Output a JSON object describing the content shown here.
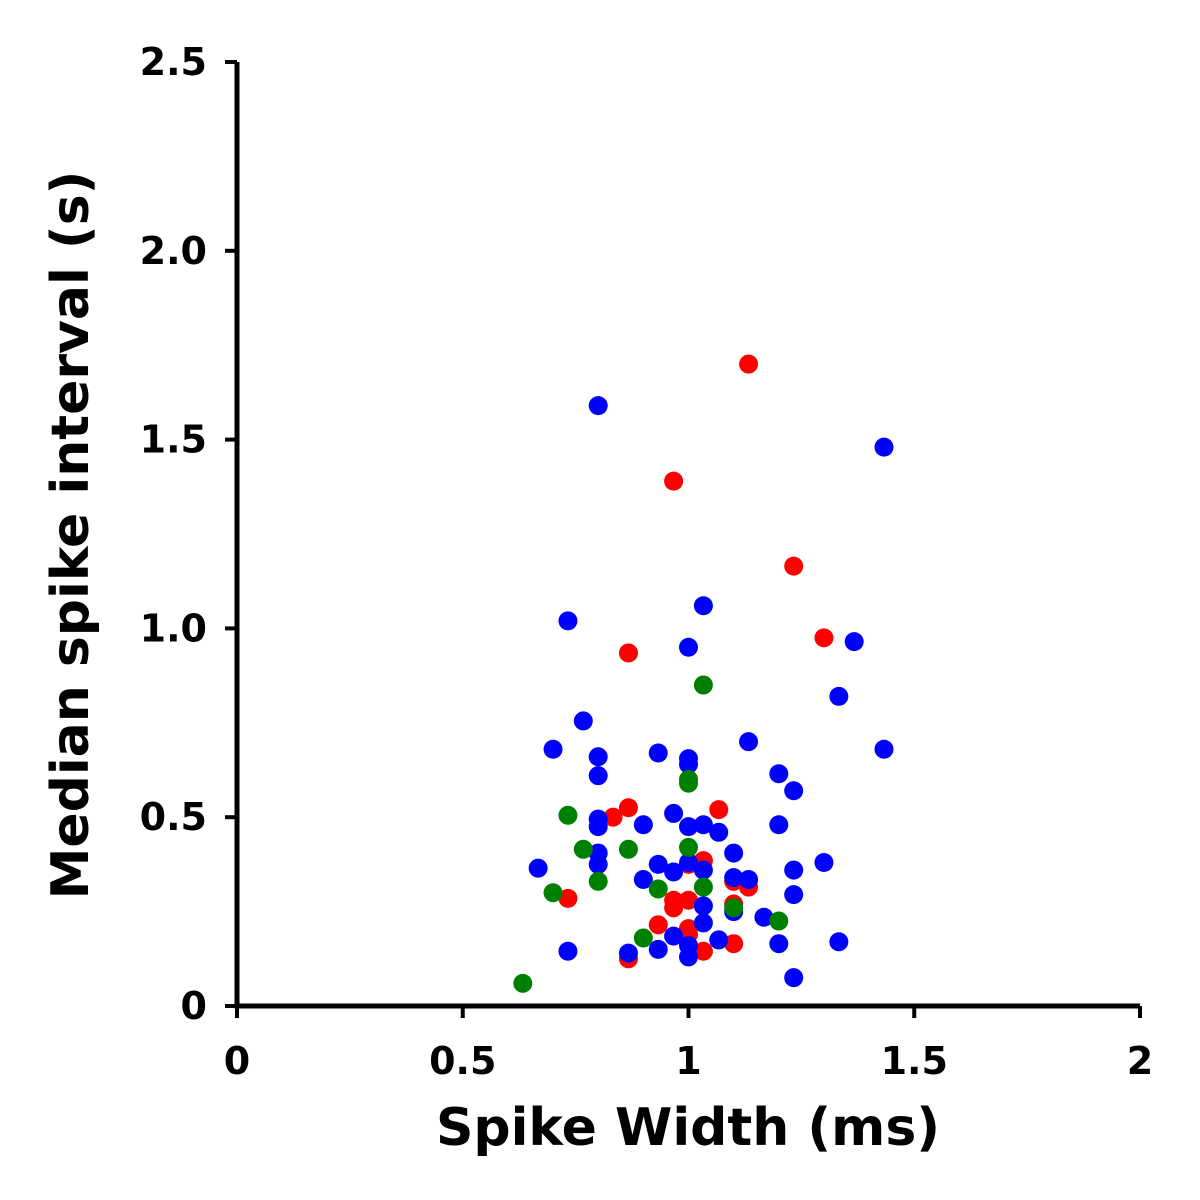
{
  "chart_data": {
    "type": "scatter",
    "title": "",
    "xlabel": "Spike Width (ms)",
    "ylabel": "Median spike interval (s)",
    "xlim": [
      0,
      2
    ],
    "ylim": [
      0,
      2.5
    ],
    "x_ticks": [
      0,
      0.5,
      1,
      1.5,
      2
    ],
    "x_tick_labels": [
      "0",
      "0.5",
      "1",
      "1.5",
      "2"
    ],
    "y_ticks": [
      0,
      0.5,
      1.0,
      1.5,
      2.0,
      2.5
    ],
    "y_tick_labels": [
      "0",
      "0.5",
      "1.0",
      "1.5",
      "2.0",
      "2.5"
    ],
    "grid": false,
    "legend": "none",
    "series": [
      {
        "color": "#ff0000",
        "points": [
          [
            1.133,
            1.7
          ],
          [
            0.967,
            1.39
          ],
          [
            1.233,
            1.165
          ],
          [
            1.3,
            0.975
          ],
          [
            0.867,
            0.935
          ],
          [
            0.867,
            0.525
          ],
          [
            0.833,
            0.5
          ],
          [
            1.067,
            0.52
          ],
          [
            1.033,
            0.385
          ],
          [
            1.0,
            0.375
          ],
          [
            0.733,
            0.285
          ],
          [
            0.967,
            0.28
          ],
          [
            1.0,
            0.28
          ],
          [
            0.967,
            0.26
          ],
          [
            1.1,
            0.33
          ],
          [
            1.133,
            0.315
          ],
          [
            0.933,
            0.215
          ],
          [
            1.0,
            0.205
          ],
          [
            1.0,
            0.19
          ],
          [
            1.1,
            0.165
          ],
          [
            1.033,
            0.145
          ],
          [
            0.867,
            0.125
          ],
          [
            1.1,
            0.27
          ]
        ]
      },
      {
        "color": "#0000ff",
        "points": [
          [
            0.8,
            1.59
          ],
          [
            1.433,
            1.48
          ],
          [
            1.033,
            1.06
          ],
          [
            0.733,
            1.02
          ],
          [
            1.367,
            0.965
          ],
          [
            1.0,
            0.95
          ],
          [
            1.333,
            0.82
          ],
          [
            0.767,
            0.755
          ],
          [
            0.7,
            0.68
          ],
          [
            1.133,
            0.7
          ],
          [
            1.433,
            0.68
          ],
          [
            0.8,
            0.66
          ],
          [
            0.933,
            0.67
          ],
          [
            1.0,
            0.655
          ],
          [
            1.0,
            0.64
          ],
          [
            0.8,
            0.61
          ],
          [
            1.2,
            0.615
          ],
          [
            1.233,
            0.57
          ],
          [
            0.967,
            0.51
          ],
          [
            0.8,
            0.495
          ],
          [
            0.8,
            0.475
          ],
          [
            0.9,
            0.48
          ],
          [
            1.0,
            0.475
          ],
          [
            1.033,
            0.48
          ],
          [
            1.067,
            0.46
          ],
          [
            1.2,
            0.48
          ],
          [
            0.8,
            0.405
          ],
          [
            0.8,
            0.375
          ],
          [
            0.667,
            0.365
          ],
          [
            0.933,
            0.375
          ],
          [
            0.967,
            0.355
          ],
          [
            1.0,
            0.38
          ],
          [
            1.033,
            0.36
          ],
          [
            1.1,
            0.405
          ],
          [
            1.233,
            0.36
          ],
          [
            1.3,
            0.38
          ],
          [
            0.9,
            0.335
          ],
          [
            1.1,
            0.34
          ],
          [
            1.133,
            0.335
          ],
          [
            1.033,
            0.265
          ],
          [
            1.1,
            0.25
          ],
          [
            1.167,
            0.235
          ],
          [
            1.233,
            0.295
          ],
          [
            1.033,
            0.22
          ],
          [
            0.967,
            0.185
          ],
          [
            1.067,
            0.175
          ],
          [
            1.0,
            0.16
          ],
          [
            0.933,
            0.15
          ],
          [
            0.867,
            0.14
          ],
          [
            1.0,
            0.13
          ],
          [
            0.733,
            0.145
          ],
          [
            1.2,
            0.165
          ],
          [
            1.333,
            0.17
          ],
          [
            1.233,
            0.075
          ]
        ]
      },
      {
        "color": "#008000",
        "points": [
          [
            1.033,
            0.85
          ],
          [
            1.0,
            0.6
          ],
          [
            1.0,
            0.59
          ],
          [
            0.733,
            0.505
          ],
          [
            0.767,
            0.415
          ],
          [
            0.867,
            0.415
          ],
          [
            1.0,
            0.42
          ],
          [
            0.8,
            0.33
          ],
          [
            0.7,
            0.3
          ],
          [
            0.933,
            0.31
          ],
          [
            1.033,
            0.315
          ],
          [
            1.1,
            0.26
          ],
          [
            1.2,
            0.225
          ],
          [
            0.9,
            0.18
          ],
          [
            0.633,
            0.06
          ]
        ]
      }
    ]
  }
}
